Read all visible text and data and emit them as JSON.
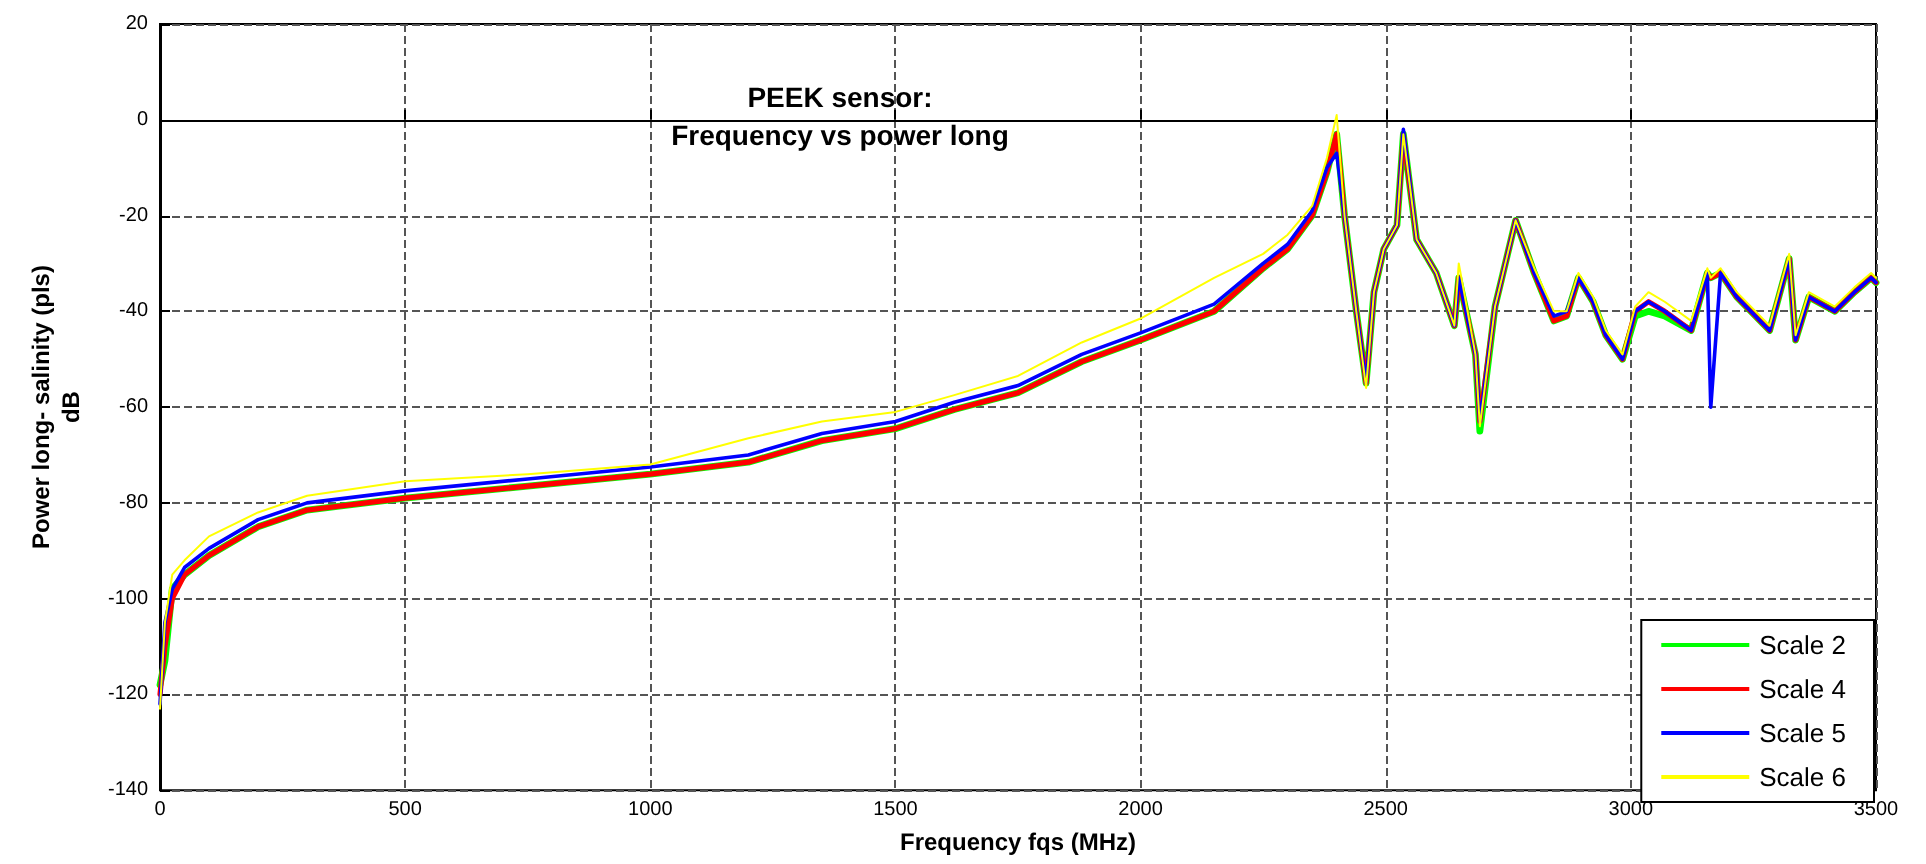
{
  "chart_data": {
    "type": "line",
    "title": "PEEK sensor:\nFrequency vs power long",
    "xlabel": "Frequency fqs (MHz)",
    "ylabel": "Power long- salinity (pls)\ndB",
    "x": [
      0,
      10,
      25,
      50,
      100,
      200,
      300,
      500,
      750,
      1000,
      1200,
      1350,
      1500,
      1620,
      1750,
      1880,
      2000,
      2150,
      2250,
      2300,
      2350,
      2380,
      2400,
      2416,
      2440,
      2460,
      2476,
      2496,
      2523,
      2536,
      2563,
      2603,
      2640,
      2649,
      2683,
      2692,
      2723,
      2765,
      2803,
      2843,
      2869,
      2893,
      2923,
      2949,
      2983,
      3009,
      3036,
      3069,
      3123,
      3156,
      3163,
      3183,
      3216,
      3283,
      3323,
      3336,
      3363,
      3416,
      3456,
      3490,
      3500
    ],
    "series": [
      {
        "name": "Scale 2",
        "color": "#00ff00",
        "values": [
          -118,
          -113,
          -98,
          -95,
          -91,
          -85,
          -81.5,
          -79,
          -76.5,
          -74,
          -71.5,
          -67,
          -64.5,
          -60.5,
          -57,
          -50.5,
          -46,
          -40,
          -31,
          -27,
          -20,
          -11,
          -3,
          -20,
          -40,
          -55,
          -36,
          -27,
          -22,
          -3,
          -25,
          -32,
          -43,
          -33,
          -49,
          -65,
          -39,
          -21,
          -32,
          -42,
          -41,
          -33,
          -38,
          -45,
          -50,
          -41,
          -40,
          -41,
          -44,
          -32,
          -33,
          -32,
          -37,
          -44,
          -29,
          -46,
          -37,
          -40,
          -36,
          -33,
          -34
        ]
      },
      {
        "name": "Scale 4",
        "color": "#ff0000",
        "values": [
          -120,
          -110,
          -100,
          -95,
          -91,
          -85,
          -81.5,
          -79,
          -76.5,
          -74,
          -71.5,
          -67,
          -64.5,
          -60.5,
          -57,
          -50.5,
          -46,
          -40,
          -31,
          -27,
          -20,
          -11,
          -3,
          -20,
          -40,
          -55,
          -36,
          -27,
          -22,
          -3,
          -25,
          -32,
          -43,
          -33,
          -49,
          -63,
          -39,
          -21,
          -32,
          -42,
          -41,
          -33,
          -38,
          -45,
          -50,
          -40,
          -38,
          -40,
          -44,
          -32,
          -33,
          -32,
          -37,
          -44,
          -29,
          -46,
          -37,
          -40,
          -36,
          -33,
          -34
        ]
      },
      {
        "name": "Scale 5",
        "color": "#0000ff",
        "values": [
          -122,
          -105,
          -98,
          -93.5,
          -89.5,
          -83.5,
          -80,
          -77.5,
          -75,
          -72.5,
          -70,
          -65.5,
          -63,
          -59,
          -55.5,
          -49,
          -44.5,
          -38.5,
          -30,
          -26,
          -19,
          -10,
          -7,
          -20,
          -40,
          -55,
          -36,
          -27,
          -22,
          -2,
          -25,
          -32,
          -43,
          -33,
          -49,
          -63,
          -39,
          -21,
          -32,
          -41,
          -40,
          -33,
          -38,
          -45,
          -50,
          -40,
          -38,
          -40,
          -44,
          -32,
          -60,
          -32,
          -37,
          -44,
          -29,
          -46,
          -37,
          -40,
          -36,
          -33,
          -34
        ]
      },
      {
        "name": "Scale 6",
        "color": "#ffff00",
        "values": [
          -123,
          -105,
          -95,
          -92,
          -87,
          -82,
          -78.5,
          -75.5,
          -74,
          -72,
          -66.5,
          -63,
          -61,
          -57.5,
          -53.5,
          -46.5,
          -41.5,
          -33,
          -28,
          -24,
          -18,
          -8,
          1,
          -20,
          -40,
          -56,
          -36,
          -27,
          -22,
          -3,
          -25,
          -32,
          -43,
          -30,
          -49,
          -64,
          -39,
          -21,
          -31,
          -40,
          -40,
          -32,
          -37,
          -44,
          -49,
          -39,
          -36,
          -38,
          -42,
          -31,
          -33,
          -31,
          -36,
          -43,
          -28,
          -45,
          -36,
          -39,
          -35,
          -32,
          -33
        ]
      }
    ],
    "xlim": [
      0,
      3500
    ],
    "xticks": [
      0,
      500,
      1000,
      1500,
      2000,
      2500,
      3000,
      3500
    ],
    "ylim": [
      -140,
      20
    ],
    "yticks": [
      -140,
      -120,
      -100,
      -80,
      -60,
      -40,
      -20,
      0,
      20
    ],
    "grid": true,
    "legend": "bottom right",
    "marker": "none",
    "line_style": "solid"
  }
}
